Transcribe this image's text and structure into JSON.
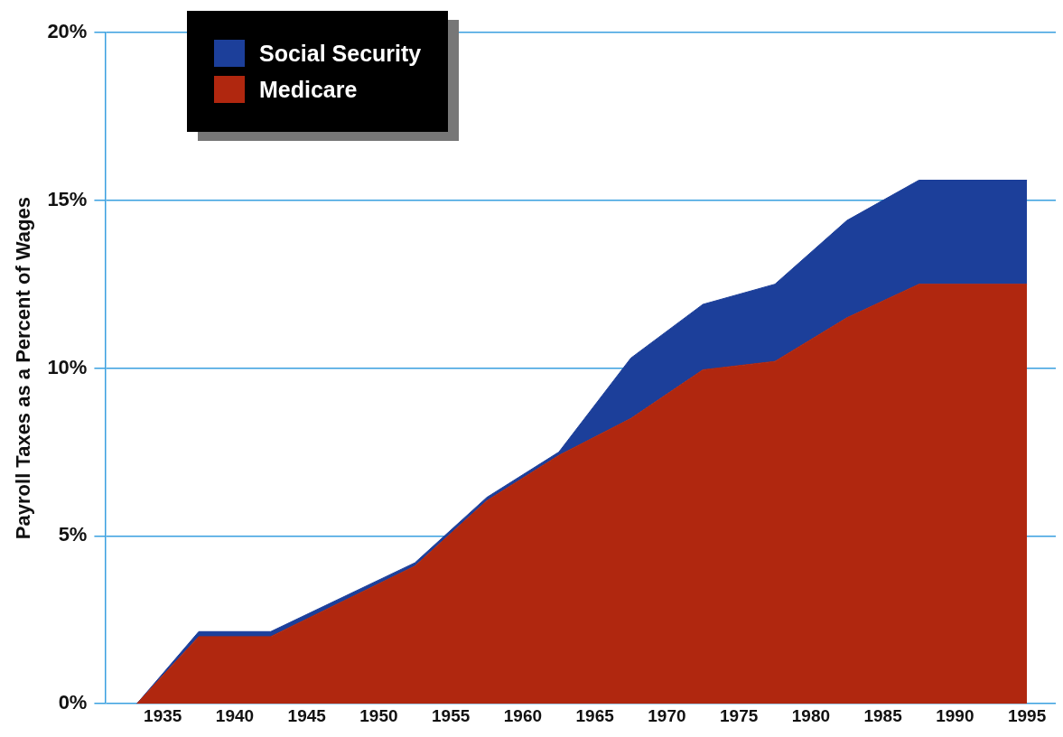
{
  "chart_data": {
    "type": "area",
    "stacked": true,
    "ylabel": "Payroll Taxes as a Percent of Wages",
    "x": [
      1933.2,
      1937.5,
      1942.5,
      1952.5,
      1957.5,
      1962.5,
      1967.5,
      1972.5,
      1977.5,
      1982.5,
      1987.5,
      1995
    ],
    "series": [
      {
        "name": "Medicare",
        "color": "#b0270f",
        "values": [
          0,
          2.0,
          2.0,
          4.1,
          6.05,
          7.4,
          8.5,
          9.95,
          10.2,
          11.5,
          12.5,
          12.5
        ]
      },
      {
        "name": "Social Security",
        "color": "#1c3f9a",
        "values": [
          0,
          0.15,
          0.15,
          0.1,
          0.1,
          0.1,
          1.8,
          1.95,
          2.3,
          2.9,
          3.1,
          3.1
        ]
      }
    ],
    "xlim": [
      1931,
      1997
    ],
    "xticks": [
      1935,
      1940,
      1945,
      1950,
      1955,
      1960,
      1965,
      1970,
      1975,
      1980,
      1985,
      1990,
      1995
    ],
    "ylim": [
      0,
      20
    ],
    "yticks": [
      {
        "value": 0,
        "label": "0%"
      },
      {
        "value": 5,
        "label": "5%"
      },
      {
        "value": 10,
        "label": "10%"
      },
      {
        "value": 15,
        "label": "15%"
      },
      {
        "value": 20,
        "label": "20%"
      }
    ],
    "grid": "y",
    "legend": "top left"
  }
}
